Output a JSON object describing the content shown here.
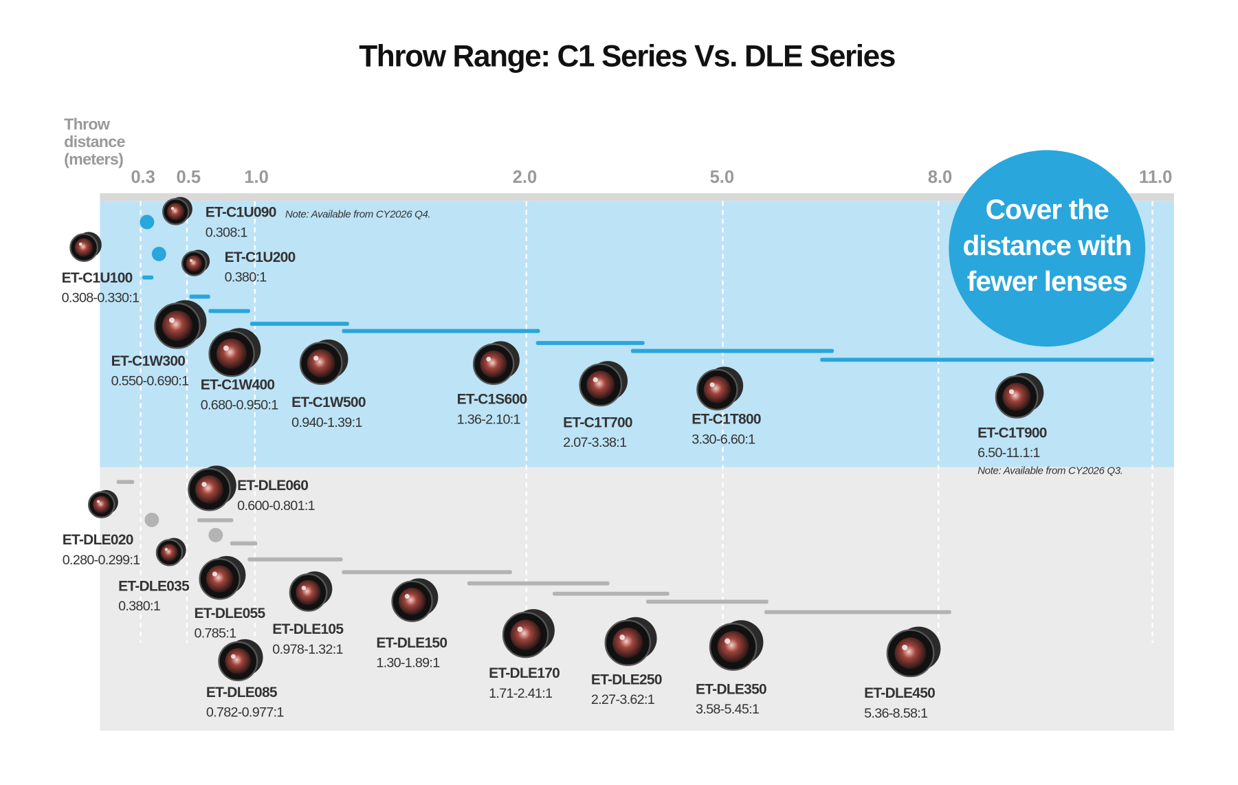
{
  "title": "Throw Range: C1 Series Vs. DLE Series",
  "axis_label": [
    "Throw",
    "distance",
    "(meters)"
  ],
  "ticks": [
    "0.3",
    "0.5",
    "1.0",
    "2.0",
    "5.0",
    "8.0",
    "11.0"
  ],
  "callout": [
    "Cover the",
    "distance with",
    "fewer lenses"
  ],
  "c1_series": [
    {
      "name": "ET-C1U090",
      "ratio": "0.308:1",
      "note": "Note: Available from CY2026 Q4."
    },
    {
      "name": "ET-C1U200",
      "ratio": "0.380:1"
    },
    {
      "name": "ET-C1U100",
      "ratio": "0.308-0.330:1"
    },
    {
      "name": "ET-C1W300",
      "ratio": "0.550-0.690:1"
    },
    {
      "name": "ET-C1W400",
      "ratio": "0.680-0.950:1"
    },
    {
      "name": "ET-C1W500",
      "ratio": "0.940-1.39:1"
    },
    {
      "name": "ET-C1S600",
      "ratio": "1.36-2.10:1"
    },
    {
      "name": "ET-C1T700",
      "ratio": "2.07-3.38:1"
    },
    {
      "name": "ET-C1T800",
      "ratio": "3.30-6.60:1"
    },
    {
      "name": "ET-C1T900",
      "ratio": "6.50-11.1:1",
      "note": "Note: Available from CY2026 Q3."
    }
  ],
  "dle_series": [
    {
      "name": "ET-DLE060",
      "ratio": "0.600-0.801:1"
    },
    {
      "name": "ET-DLE020",
      "ratio": "0.280-0.299:1"
    },
    {
      "name": "ET-DLE035",
      "ratio": "0.380:1"
    },
    {
      "name": "ET-DLE055",
      "ratio": "0.785:1"
    },
    {
      "name": "ET-DLE105",
      "ratio": "0.978-1.32:1"
    },
    {
      "name": "ET-DLE150",
      "ratio": "1.30-1.89:1"
    },
    {
      "name": "ET-DLE170",
      "ratio": "1.71-2.41:1"
    },
    {
      "name": "ET-DLE250",
      "ratio": "2.27-3.62:1"
    },
    {
      "name": "ET-DLE350",
      "ratio": "3.58-5.45:1"
    },
    {
      "name": "ET-DLE085",
      "ratio": "0.782-0.977:1"
    },
    {
      "name": "ET-DLE450",
      "ratio": "5.36-8.58:1"
    }
  ]
}
